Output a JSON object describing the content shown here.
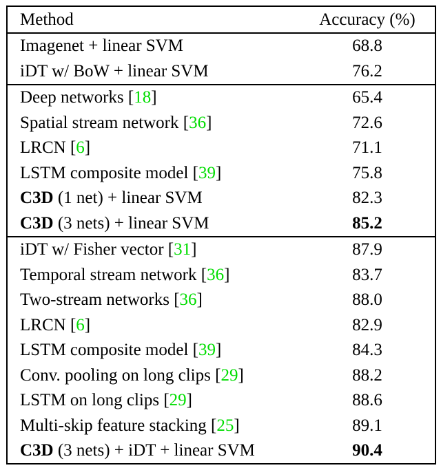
{
  "table": {
    "header": {
      "method": "Method",
      "accuracy": "Accuracy (%)"
    },
    "punct": {
      "open": "[",
      "close": "]"
    },
    "colors": {
      "citation_green": "#00dd00",
      "border": "#000000",
      "background": "#ffffff"
    },
    "rows": [
      {
        "text": "Imagenet + linear SVM",
        "accuracy": "68.8"
      },
      {
        "text": "iDT w/ BoW + linear SVM",
        "accuracy": "76.2"
      },
      {
        "text": "Deep networks ",
        "cite": "18",
        "accuracy": "65.4"
      },
      {
        "text": "Spatial stream network ",
        "cite": "36",
        "accuracy": "72.6"
      },
      {
        "text": "LRCN ",
        "cite": "6",
        "accuracy": "71.1"
      },
      {
        "text": "LSTM composite model ",
        "cite": "39",
        "accuracy": "75.8"
      },
      {
        "bold": "C3D",
        "text": " (1 net) + linear SVM",
        "accuracy": "82.3"
      },
      {
        "bold": "C3D",
        "text": " (3 nets) + linear SVM",
        "accuracy": "85.2",
        "accuracy_bold": true
      },
      {
        "text": "iDT w/ Fisher vector ",
        "cite": "31",
        "accuracy": "87.9"
      },
      {
        "text": "Temporal stream network ",
        "cite": "36",
        "accuracy": "83.7"
      },
      {
        "text": "Two-stream networks ",
        "cite": "36",
        "accuracy": "88.0"
      },
      {
        "text": "LRCN ",
        "cite": "6",
        "accuracy": "82.9"
      },
      {
        "text": "LSTM composite model ",
        "cite": "39",
        "accuracy": "84.3"
      },
      {
        "text": "Conv. pooling on long clips ",
        "cite": "29",
        "accuracy": "88.2"
      },
      {
        "text": "LSTM on long clips ",
        "cite": "29",
        "accuracy": "88.6"
      },
      {
        "text": "Multi-skip feature stacking ",
        "cite": "25",
        "accuracy": "89.1"
      },
      {
        "bold": "C3D",
        "text": " (3 nets) + iDT + linear SVM",
        "accuracy": "90.4",
        "accuracy_bold": true
      }
    ]
  }
}
